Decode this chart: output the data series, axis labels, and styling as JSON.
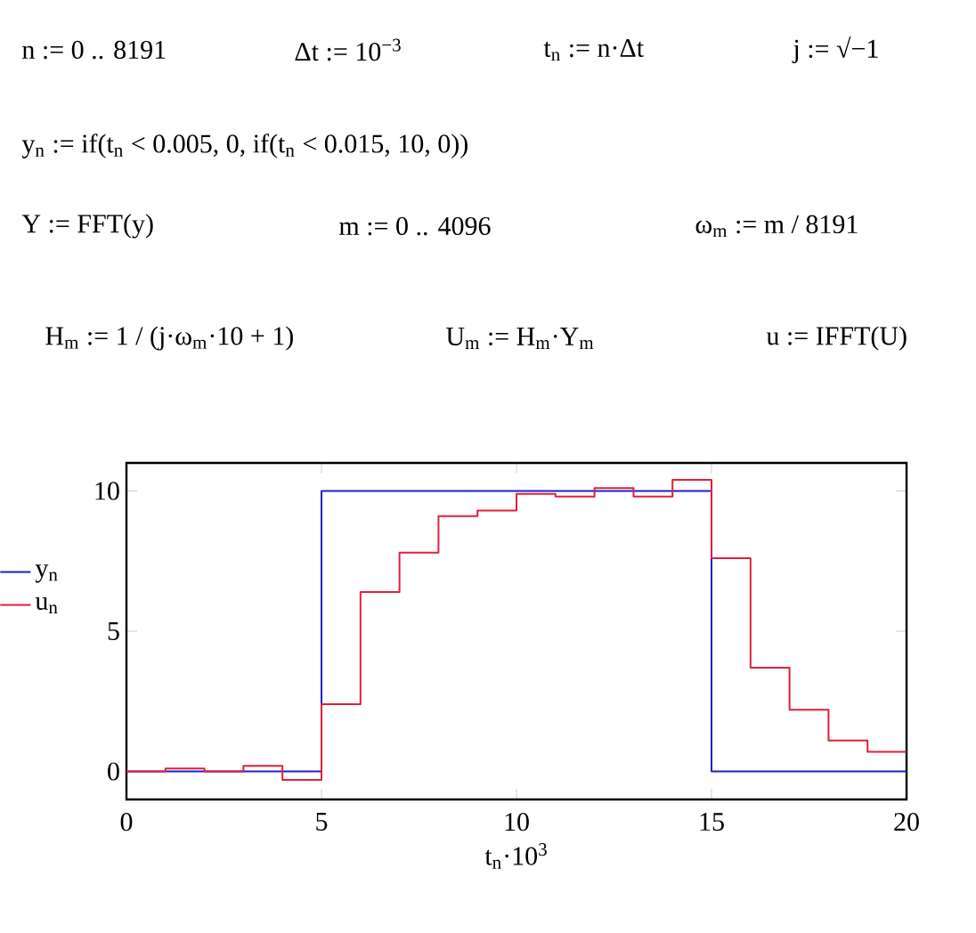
{
  "chart_data": {
    "type": "step",
    "annotations": [
      "n := 0 .. 8191",
      "Δt := 10$^{−3}$",
      "t$_{n}$ := n·Δt",
      "j := √−1",
      "y$_{n}$ := if(t$_{n}$ < 0.005, 0, if(t$_{n}$ < 0.015, 10, 0))",
      "Y := FFT(y)",
      "m := 0 .. 4096",
      "ω$_{m}$ := m / 8191",
      "H$_{m}$ := 1 / (j·ω$_{m}$·10 + 1)",
      "U$_{m}$ := H$_{m}$·Y$_{m}$",
      "u := IFFT(U)"
    ],
    "xlabel": "t$_{n}$·10$^{3}$",
    "x": [
      0,
      1,
      2,
      3,
      4,
      5,
      6,
      7,
      8,
      9,
      10,
      11,
      12,
      13,
      14,
      15,
      16,
      17,
      18,
      19,
      20
    ],
    "series": [
      {
        "name": "y$_{n}$",
        "color": "#2020c0",
        "values": [
          0,
          0,
          0,
          0,
          0,
          10,
          10,
          10,
          10,
          10,
          10,
          10,
          10,
          10,
          10,
          0,
          0,
          0,
          0,
          0,
          0
        ]
      },
      {
        "name": "u$_{n}$",
        "color": "#e0203a",
        "values": [
          0,
          0.1,
          0,
          0.2,
          -0.3,
          2.4,
          6.4,
          7.8,
          9.1,
          9.3,
          9.9,
          9.8,
          10.1,
          9.8,
          10.4,
          7.6,
          3.7,
          2.2,
          1.1,
          0.7,
          0.7
        ]
      }
    ],
    "xlim": [
      0,
      20
    ],
    "ylim": [
      -1,
      11
    ],
    "xticks": [
      0,
      5,
      10,
      15,
      20
    ],
    "yticks": [
      0,
      5,
      10
    ],
    "grid": false,
    "legend": "left",
    "line_style": "solid",
    "marker": "none"
  }
}
